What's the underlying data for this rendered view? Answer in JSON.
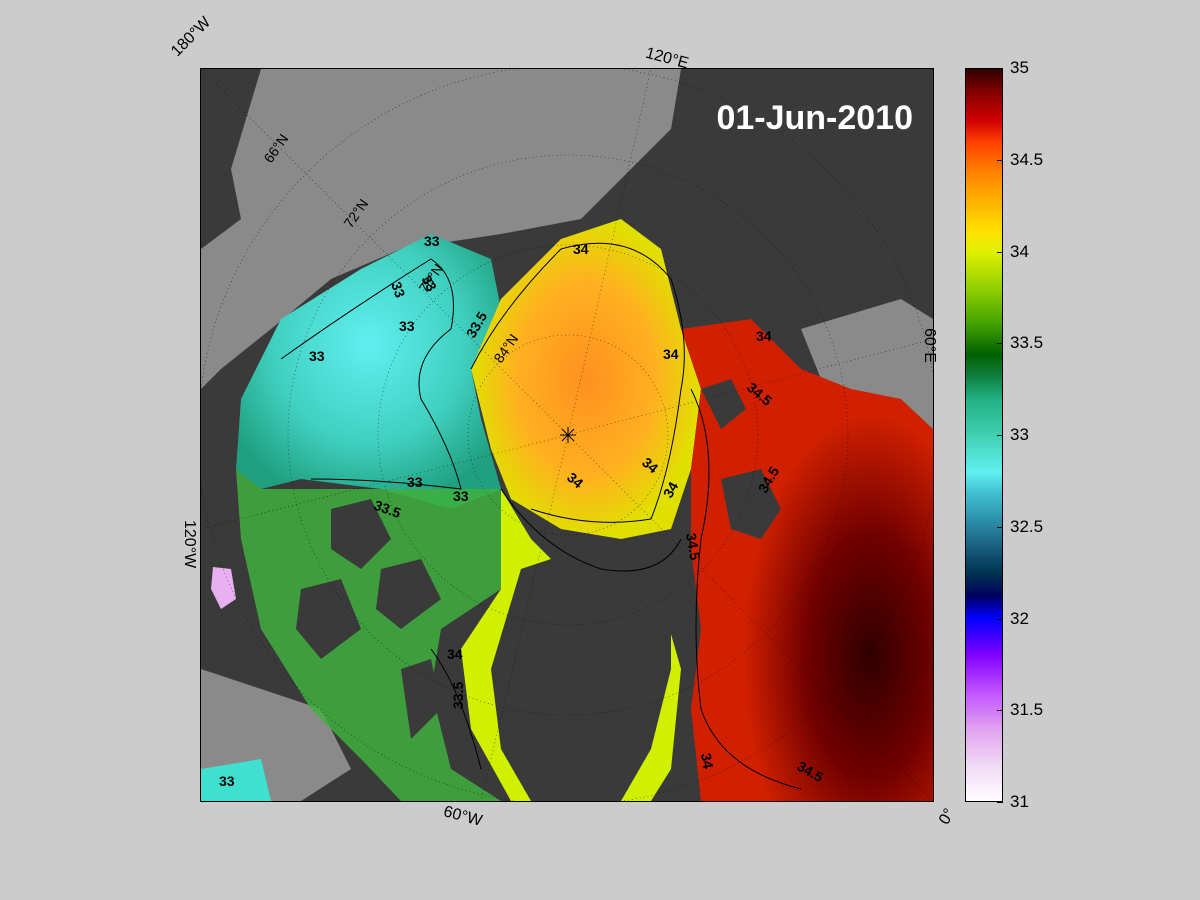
{
  "date": "01-Jun-2010",
  "edge_labels": {
    "lon_180w": "180°W",
    "lon_120e": "120°E",
    "lon_60e": "60°E",
    "lon_0": "0°",
    "lon_60w": "60°W",
    "lon_120w": "120°W"
  },
  "lat_labels": {
    "lat_66": "66°N",
    "lat_72": "72°N",
    "lat_78": "78°N",
    "lat_84": "84°N"
  },
  "contour_labels": {
    "c1": "33",
    "c2": "33",
    "c3": "33",
    "c4": "33",
    "c5": "33",
    "c6": "33",
    "c7": "33",
    "c8": "33",
    "c9": "33.5",
    "c10": "33.5",
    "c11": "33.5",
    "c12": "34",
    "c13": "34",
    "c14": "34",
    "c15": "34",
    "c16": "34",
    "c17": "34",
    "c18": "34",
    "c19": "34",
    "c20": "34.5",
    "c21": "34.5",
    "c22": "34.5",
    "c23": "34.5"
  },
  "colorbar": {
    "min": 31,
    "max": 35,
    "ticks": [
      "35",
      "34.5",
      "34",
      "33.5",
      "33",
      "32.5",
      "32",
      "31.5",
      "31"
    ],
    "tick_values": [
      35,
      34.5,
      34,
      33.5,
      33,
      32.5,
      32,
      31.5,
      31
    ]
  },
  "colors": {
    "land": "#3a3a3a",
    "ice_shelf": "#8a8a8a",
    "background": "#cccccc"
  }
}
